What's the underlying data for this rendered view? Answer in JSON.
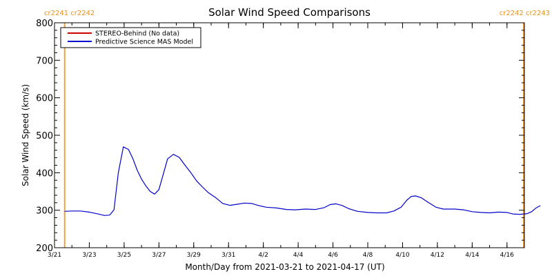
{
  "chart_data": {
    "type": "line",
    "title": "Solar Wind Speed Comparisons",
    "xlabel": "Month/Day from 2021-03-21 to 2021-04-17 (UT)",
    "ylabel": "Solar Wind Speed (km/s)",
    "xlim": [
      "2021-03-21",
      "2021-04-17"
    ],
    "ylim": [
      200,
      800
    ],
    "y_ticks": [
      200,
      300,
      400,
      500,
      600,
      700,
      800
    ],
    "x_tick_labels": [
      "3/21",
      "3/23",
      "3/25",
      "3/27",
      "3/29",
      "3/31",
      "4/2",
      "4/4",
      "4/6",
      "4/8",
      "4/10",
      "4/12",
      "4/14",
      "4/16"
    ],
    "x_tick_dates": [
      "2021-03-21",
      "2021-03-23",
      "2021-03-25",
      "2021-03-27",
      "2021-03-29",
      "2021-03-31",
      "2021-04-02",
      "2021-04-04",
      "2021-04-06",
      "2021-04-08",
      "2021-04-10",
      "2021-04-12",
      "2021-04-14",
      "2021-04-16"
    ],
    "grid": false,
    "legend_position": "top-left",
    "carrington_markers": [
      {
        "label": "cr2241 cr2242",
        "date": "2021-03-21 14:00",
        "color": "#f0a040",
        "text_align": "left"
      },
      {
        "label": "cr2242 cr2243",
        "date": "2021-04-17",
        "color": "#f0a040",
        "text_align": "right"
      }
    ],
    "series": [
      {
        "name": "STEREO-Behind (No data)",
        "color": "#cc0000",
        "points": []
      },
      {
        "name": "Predictive Science MAS Model",
        "color": "#0000cc",
        "points": [
          [
            "2021-03-21 14:00",
            297
          ],
          [
            "2021-03-22 00:00",
            298
          ],
          [
            "2021-03-22 12:00",
            298
          ],
          [
            "2021-03-23 00:00",
            295
          ],
          [
            "2021-03-23 12:00",
            290
          ],
          [
            "2021-03-23 21:00",
            286
          ],
          [
            "2021-03-24 04:00",
            287
          ],
          [
            "2021-03-24 10:00",
            301
          ],
          [
            "2021-03-24 16:00",
            400
          ],
          [
            "2021-03-24 23:00",
            469
          ],
          [
            "2021-03-25 06:00",
            462
          ],
          [
            "2021-03-25 12:00",
            438
          ],
          [
            "2021-03-25 18:00",
            407
          ],
          [
            "2021-03-26 00:00",
            383
          ],
          [
            "2021-03-26 06:00",
            365
          ],
          [
            "2021-03-26 12:00",
            350
          ],
          [
            "2021-03-26 18:00",
            343
          ],
          [
            "2021-03-27 00:00",
            355
          ],
          [
            "2021-03-27 12:00",
            437
          ],
          [
            "2021-03-27 20:00",
            449
          ],
          [
            "2021-03-28 04:00",
            441
          ],
          [
            "2021-03-28 12:00",
            420
          ],
          [
            "2021-03-28 20:00",
            400
          ],
          [
            "2021-03-29 04:00",
            378
          ],
          [
            "2021-03-29 12:00",
            362
          ],
          [
            "2021-03-29 20:00",
            347
          ],
          [
            "2021-03-30 06:00",
            334
          ],
          [
            "2021-03-30 16:00",
            318
          ],
          [
            "2021-03-31 02:00",
            313
          ],
          [
            "2021-03-31 12:00",
            316
          ],
          [
            "2021-03-31 22:00",
            319
          ],
          [
            "2021-04-01 08:00",
            318
          ],
          [
            "2021-04-01 18:00",
            312
          ],
          [
            "2021-04-02 04:00",
            308
          ],
          [
            "2021-04-02 18:00",
            306
          ],
          [
            "2021-04-03 08:00",
            302
          ],
          [
            "2021-04-03 20:00",
            301
          ],
          [
            "2021-04-04 10:00",
            303
          ],
          [
            "2021-04-05 00:00",
            302
          ],
          [
            "2021-04-05 12:00",
            307
          ],
          [
            "2021-04-05 20:00",
            315
          ],
          [
            "2021-04-06 04:00",
            317
          ],
          [
            "2021-04-06 12:00",
            313
          ],
          [
            "2021-04-06 22:00",
            304
          ],
          [
            "2021-04-07 10:00",
            297
          ],
          [
            "2021-04-08 00:00",
            294
          ],
          [
            "2021-04-08 12:00",
            293
          ],
          [
            "2021-04-09 02:00",
            293
          ],
          [
            "2021-04-09 12:00",
            298
          ],
          [
            "2021-04-09 22:00",
            308
          ],
          [
            "2021-04-10 06:00",
            327
          ],
          [
            "2021-04-10 12:00",
            337
          ],
          [
            "2021-04-10 18:00",
            338
          ],
          [
            "2021-04-11 02:00",
            333
          ],
          [
            "2021-04-11 12:00",
            320
          ],
          [
            "2021-04-11 22:00",
            308
          ],
          [
            "2021-04-12 08:00",
            303
          ],
          [
            "2021-04-13 00:00",
            303
          ],
          [
            "2021-04-13 12:00",
            301
          ],
          [
            "2021-04-14 00:00",
            296
          ],
          [
            "2021-04-14 12:00",
            294
          ],
          [
            "2021-04-15 00:00",
            293
          ],
          [
            "2021-04-15 12:00",
            295
          ],
          [
            "2021-04-16 00:00",
            294
          ],
          [
            "2021-04-16 08:00",
            290
          ],
          [
            "2021-04-16 18:00",
            289
          ],
          [
            "2021-04-17 04:00",
            291
          ],
          [
            "2021-04-17 10:00",
            296
          ],
          [
            "2021-04-17 16:00",
            306
          ],
          [
            "2021-04-17 22:00",
            312
          ]
        ]
      }
    ]
  }
}
